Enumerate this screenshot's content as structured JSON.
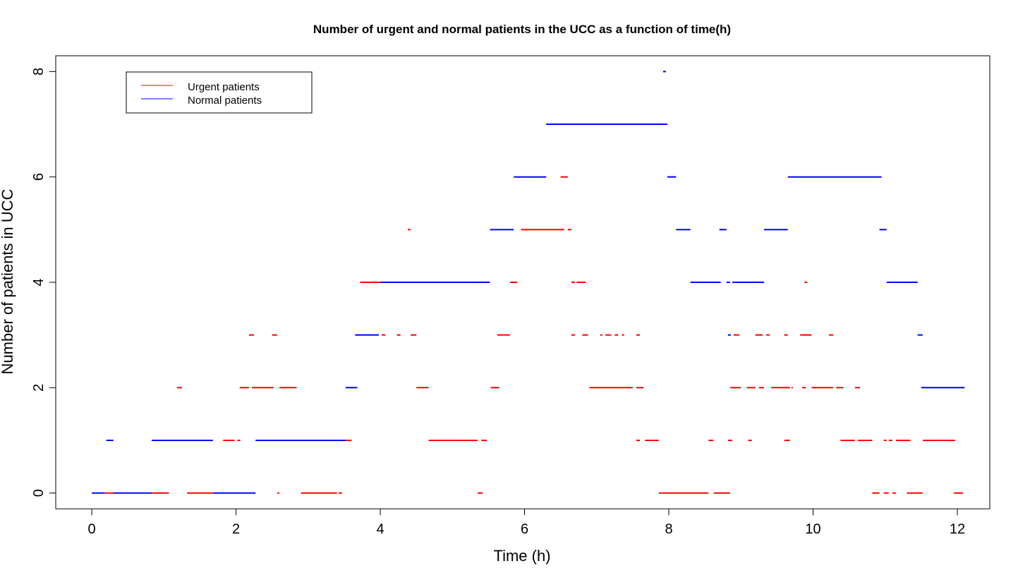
{
  "chart_data": {
    "type": "line",
    "title": "Number of urgent and normal patients in the UCC as a function of time(h)",
    "xlabel": "Time (h)",
    "ylabel": "Number of patients in UCC",
    "xlim": [
      -0.5,
      12.45
    ],
    "ylim": [
      -0.3,
      8.3
    ],
    "x_ticks": [
      0,
      2,
      4,
      6,
      8,
      10,
      12
    ],
    "y_ticks": [
      0,
      2,
      4,
      6,
      8
    ],
    "x_tick_labels": [
      "0",
      "2",
      "4",
      "6",
      "8",
      "10",
      "12"
    ],
    "y_tick_labels": [
      "0",
      "2",
      "4",
      "6",
      "8"
    ],
    "grid": false,
    "legend": {
      "position": "top-left",
      "entries": [
        {
          "label": "Urgent patients",
          "color": "#ff0000"
        },
        {
          "label": "Normal patients",
          "color": "#0000ff"
        }
      ]
    },
    "series": [
      {
        "name": "Urgent patients",
        "color": "#ff0000",
        "segments": [
          [
            0.18,
            0.3,
            0
          ],
          [
            0.83,
            1.07,
            0
          ],
          [
            1.32,
            1.68,
            0
          ],
          [
            2.57,
            2.6,
            0
          ],
          [
            2.9,
            3.4,
            0
          ],
          [
            3.42,
            3.47,
            0
          ],
          [
            5.35,
            5.42,
            0
          ],
          [
            7.86,
            8.55,
            0
          ],
          [
            8.62,
            8.85,
            0
          ],
          [
            10.82,
            10.92,
            0
          ],
          [
            10.98,
            11.05,
            0
          ],
          [
            11.1,
            11.15,
            0
          ],
          [
            11.3,
            11.52,
            0
          ],
          [
            11.95,
            12.08,
            0
          ],
          [
            1.82,
            1.98,
            1
          ],
          [
            2.02,
            2.06,
            1
          ],
          [
            3.52,
            3.6,
            1
          ],
          [
            4.67,
            5.35,
            1
          ],
          [
            5.4,
            5.48,
            1
          ],
          [
            7.55,
            7.6,
            1
          ],
          [
            7.67,
            7.86,
            1
          ],
          [
            8.55,
            8.62,
            1
          ],
          [
            8.82,
            8.88,
            1
          ],
          [
            9.1,
            9.15,
            1
          ],
          [
            9.6,
            9.68,
            1
          ],
          [
            10.38,
            10.58,
            1
          ],
          [
            10.62,
            10.82,
            1
          ],
          [
            10.98,
            11.02,
            1
          ],
          [
            11.05,
            11.1,
            1
          ],
          [
            11.15,
            11.35,
            1
          ],
          [
            11.52,
            11.97,
            1
          ],
          [
            1.18,
            1.25,
            2
          ],
          [
            2.05,
            2.18,
            2
          ],
          [
            2.22,
            2.52,
            2
          ],
          [
            2.6,
            2.84,
            2
          ],
          [
            4.5,
            4.67,
            2
          ],
          [
            5.53,
            5.65,
            2
          ],
          [
            6.9,
            7.3,
            2
          ],
          [
            7.3,
            7.5,
            2
          ],
          [
            7.55,
            7.65,
            2
          ],
          [
            8.85,
            9.0,
            2
          ],
          [
            9.08,
            9.2,
            2
          ],
          [
            9.25,
            9.32,
            2
          ],
          [
            9.42,
            9.68,
            2
          ],
          [
            9.7,
            9.72,
            2
          ],
          [
            9.85,
            9.9,
            2
          ],
          [
            9.98,
            10.28,
            2
          ],
          [
            10.32,
            10.42,
            2
          ],
          [
            10.58,
            10.65,
            2
          ],
          [
            2.18,
            2.25,
            3
          ],
          [
            2.5,
            2.57,
            3
          ],
          [
            3.68,
            3.72,
            3
          ],
          [
            4.02,
            4.07,
            3
          ],
          [
            4.23,
            4.28,
            3
          ],
          [
            4.42,
            4.5,
            3
          ],
          [
            5.62,
            5.8,
            3
          ],
          [
            6.65,
            6.7,
            3
          ],
          [
            6.8,
            6.88,
            3
          ],
          [
            7.05,
            7.08,
            3
          ],
          [
            7.12,
            7.2,
            3
          ],
          [
            7.25,
            7.3,
            3
          ],
          [
            7.35,
            7.38,
            3
          ],
          [
            7.55,
            7.6,
            3
          ],
          [
            8.9,
            8.98,
            3
          ],
          [
            9.2,
            9.3,
            3
          ],
          [
            9.35,
            9.4,
            3
          ],
          [
            9.6,
            9.65,
            3
          ],
          [
            9.82,
            9.98,
            3
          ],
          [
            10.22,
            10.28,
            3
          ],
          [
            3.72,
            4.02,
            4
          ],
          [
            5.8,
            5.9,
            4
          ],
          [
            6.65,
            6.7,
            4
          ],
          [
            6.72,
            6.85,
            4
          ],
          [
            9.88,
            9.92,
            4
          ],
          [
            4.38,
            4.42,
            5
          ],
          [
            5.95,
            6.55,
            5
          ],
          [
            6.6,
            6.65,
            5
          ],
          [
            6.5,
            6.6,
            6
          ]
        ]
      },
      {
        "name": "Normal patients",
        "color": "#0000ff",
        "segments": [
          [
            0.0,
            0.18,
            0
          ],
          [
            0.3,
            0.83,
            0
          ],
          [
            1.68,
            2.27,
            0
          ],
          [
            0.2,
            0.3,
            1
          ],
          [
            0.83,
            1.68,
            1
          ],
          [
            2.27,
            3.52,
            1
          ],
          [
            3.52,
            3.68,
            2
          ],
          [
            11.5,
            12.1,
            2
          ],
          [
            3.65,
            3.98,
            3
          ],
          [
            8.82,
            8.86,
            3
          ],
          [
            11.45,
            11.52,
            3
          ],
          [
            4.0,
            5.52,
            4
          ],
          [
            8.3,
            8.72,
            4
          ],
          [
            8.8,
            8.85,
            4
          ],
          [
            8.88,
            9.32,
            4
          ],
          [
            11.02,
            11.45,
            4
          ],
          [
            5.52,
            5.85,
            5
          ],
          [
            8.1,
            8.3,
            5
          ],
          [
            8.7,
            8.8,
            5
          ],
          [
            9.32,
            9.65,
            5
          ],
          [
            10.92,
            11.02,
            5
          ],
          [
            5.85,
            6.3,
            6
          ],
          [
            7.98,
            8.1,
            6
          ],
          [
            9.65,
            10.95,
            6
          ],
          [
            6.3,
            7.95,
            7
          ],
          [
            7.95,
            7.98,
            7
          ],
          [
            7.92,
            7.96,
            8
          ]
        ]
      }
    ]
  }
}
